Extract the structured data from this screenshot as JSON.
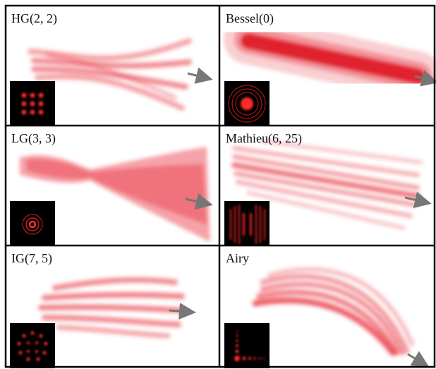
{
  "panels": [
    {
      "label": "HG(2, 2)"
    },
    {
      "label": "Bessel(0)"
    },
    {
      "label": "LG(3, 3)"
    },
    {
      "label": "Mathieu(6, 25)"
    },
    {
      "label": "IG(7, 5)"
    },
    {
      "label": "Airy"
    }
  ]
}
